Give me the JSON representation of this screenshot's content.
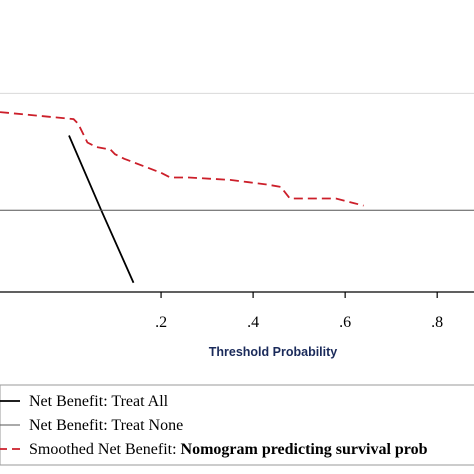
{
  "chart_data": {
    "type": "line",
    "title": "",
    "xlabel": "Threshold Probability",
    "ylabel": "",
    "xlim": [
      -0.15,
      0.88
    ],
    "ylim": [
      -0.35,
      0.75
    ],
    "x_ticks": [
      0.2,
      0.4,
      0.6,
      0.8
    ],
    "x_tick_labels": [
      ".2",
      ".4",
      ".6",
      ".8"
    ],
    "y_gridlines": [
      0.0,
      0.5
    ],
    "grid": true,
    "series": [
      {
        "name": "Net Benefit: Treat All",
        "style": "solid",
        "color": "#000000",
        "x": [
          0.0,
          0.07,
          0.14
        ],
        "y": [
          0.32,
          0.0,
          -0.31
        ]
      },
      {
        "name": "Net Benefit: Treat None",
        "style": "solid",
        "color": "#555555",
        "x": [
          -0.15,
          0.88
        ],
        "y": [
          0.0,
          0.0
        ]
      },
      {
        "name": "Smoothed Net Benefit: Nomogram predicting survival prob",
        "style": "dashed",
        "color": "#cc1f2a",
        "x": [
          -0.15,
          0.01,
          0.02,
          0.04,
          0.06,
          0.09,
          0.1,
          0.12,
          0.2,
          0.22,
          0.26,
          0.35,
          0.39,
          0.43,
          0.46,
          0.48,
          0.52,
          0.58,
          0.62,
          0.64
        ],
        "y": [
          0.42,
          0.39,
          0.37,
          0.29,
          0.27,
          0.26,
          0.24,
          0.22,
          0.16,
          0.14,
          0.14,
          0.13,
          0.12,
          0.11,
          0.1,
          0.05,
          0.05,
          0.05,
          0.03,
          0.02
        ]
      }
    ],
    "legend": {
      "position": "bottom",
      "entries": [
        {
          "prefix": "Net Benefit: Treat All",
          "bold": ""
        },
        {
          "prefix": "Net Benefit: Treat None",
          "bold": ""
        },
        {
          "prefix": "Smoothed Net Benefit: ",
          "bold": "Nomogram predicting survival prob"
        }
      ]
    }
  }
}
